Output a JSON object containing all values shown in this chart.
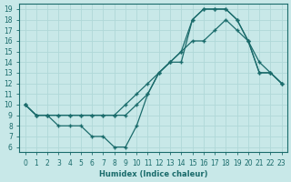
{
  "xlabel": "Humidex (Indice chaleur)",
  "bg_color": "#c8e8e8",
  "grid_color": "#b0d8d8",
  "line_color": "#1a6b6b",
  "xlim": [
    -0.5,
    23.5
  ],
  "ylim": [
    5.5,
    19.5
  ],
  "xticks": [
    0,
    1,
    2,
    3,
    4,
    5,
    6,
    7,
    8,
    9,
    10,
    11,
    12,
    13,
    14,
    15,
    16,
    17,
    18,
    19,
    20,
    21,
    22,
    23
  ],
  "yticks": [
    6,
    7,
    8,
    9,
    10,
    11,
    12,
    13,
    14,
    15,
    16,
    17,
    18,
    19
  ],
  "line1_x": [
    0,
    1,
    2,
    3,
    4,
    5,
    6,
    7,
    8,
    9,
    10,
    11,
    12,
    13,
    14,
    15,
    16,
    17,
    18,
    19,
    20,
    21,
    22,
    23
  ],
  "line1_y": [
    10,
    9,
    9,
    9,
    9,
    9,
    9,
    9,
    9,
    9,
    10,
    11,
    13,
    14,
    15,
    18,
    19,
    19,
    19,
    18,
    16,
    13,
    13,
    12
  ],
  "line2_x": [
    0,
    1,
    2,
    3,
    4,
    5,
    6,
    7,
    8,
    9,
    10,
    11,
    12,
    13,
    14,
    15,
    16,
    17,
    18,
    19,
    20,
    21,
    22,
    23
  ],
  "line2_y": [
    10,
    9,
    9,
    9,
    9,
    9,
    9,
    9,
    9,
    10,
    11,
    12,
    13,
    14,
    15,
    16,
    16,
    17,
    18,
    17,
    16,
    14,
    13,
    12
  ],
  "line3_x": [
    0,
    1,
    2,
    3,
    4,
    5,
    6,
    7,
    8,
    9,
    10,
    11,
    12,
    13,
    14,
    15,
    16,
    17,
    18,
    19,
    20,
    21,
    22,
    23
  ],
  "line3_y": [
    10,
    9,
    9,
    8,
    8,
    8,
    7,
    7,
    6,
    6,
    8,
    11,
    13,
    14,
    14,
    18,
    19,
    19,
    19,
    18,
    16,
    13,
    13,
    12
  ]
}
